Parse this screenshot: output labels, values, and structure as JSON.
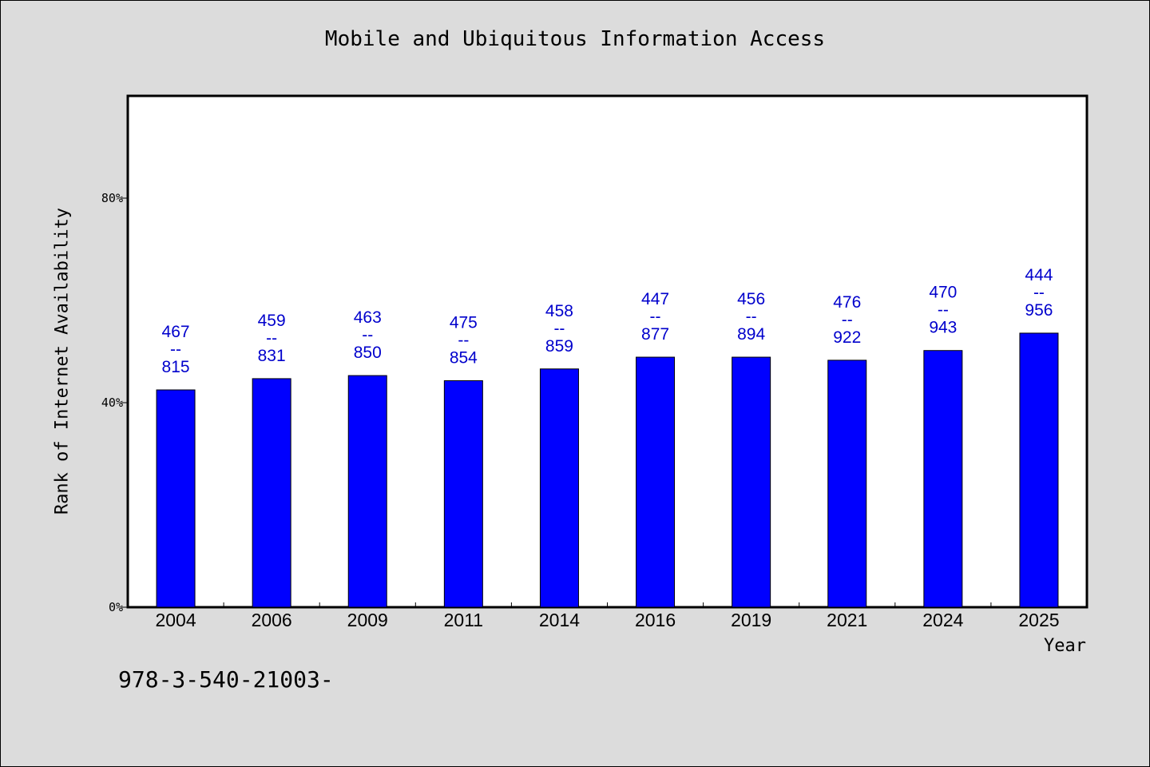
{
  "chart_data": {
    "type": "bar",
    "title": "Mobile and Ubiquitous Information Access",
    "xlabel": "Year",
    "ylabel": "Rank of Internet Availability",
    "ylim": [
      0,
      100
    ],
    "yticks": [
      0,
      40,
      80
    ],
    "ytick_labels": [
      "0%",
      "40%",
      "80%"
    ],
    "categories": [
      "2004",
      "2006",
      "2009",
      "2011",
      "2014",
      "2016",
      "2019",
      "2021",
      "2024",
      "2025"
    ],
    "values": [
      42.5,
      44.7,
      45.3,
      44.3,
      46.6,
      48.9,
      48.9,
      48.3,
      50.2,
      53.6
    ],
    "data_labels": [
      [
        "467",
        "--",
        "815"
      ],
      [
        "459",
        "--",
        "831"
      ],
      [
        "463",
        "--",
        "850"
      ],
      [
        "475",
        "--",
        "854"
      ],
      [
        "458",
        "--",
        "859"
      ],
      [
        "447",
        "--",
        "877"
      ],
      [
        "456",
        "--",
        "894"
      ],
      [
        "476",
        "--",
        "922"
      ],
      [
        "470",
        "--",
        "943"
      ],
      [
        "444",
        "--",
        "956"
      ]
    ],
    "colors": {
      "bar": "#0000ff",
      "label": "#0000cc",
      "background": "#dcdcdc",
      "plot_background": "#ffffff"
    },
    "grid": false,
    "legend": "none"
  },
  "footnote": "978-3-540-21003-"
}
